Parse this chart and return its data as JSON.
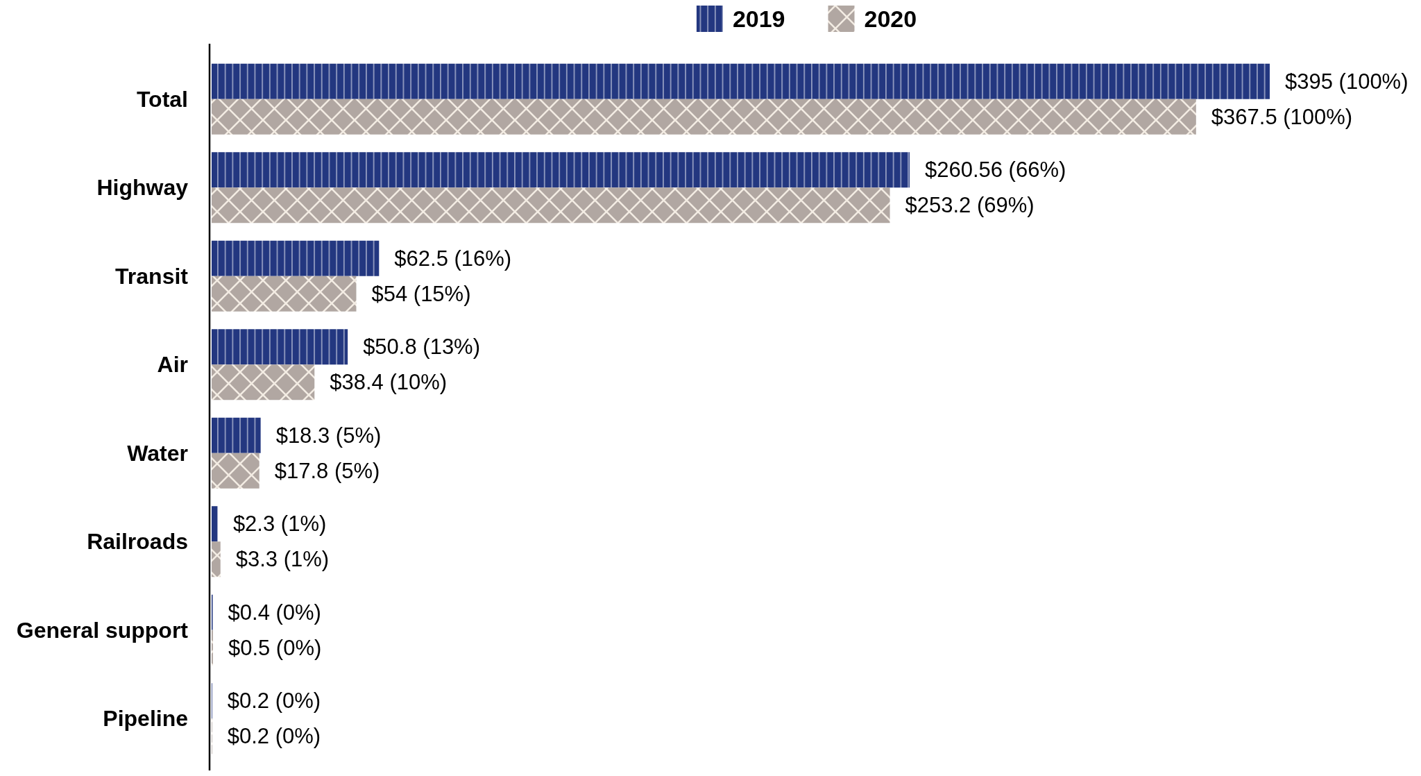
{
  "chart_data": {
    "type": "bar",
    "orientation": "horizontal",
    "legend": "top",
    "tick_labels": "y",
    "categories": [
      "Total",
      "Highway",
      "Transit",
      "Air",
      "Water",
      "Railroads",
      "General support",
      "Pipeline"
    ],
    "series": [
      {
        "name": "2019",
        "color": "#233780",
        "values": [
          395,
          260.56,
          62.5,
          50.8,
          18.3,
          2.3,
          0.4,
          0.2
        ],
        "value_labels": [
          "$395 (100%)",
          "$260.56 (66%)",
          "$62.5 (16%)",
          "$50.8 (13%)",
          "$18.3 (5%)",
          "$2.3 (1%)",
          "$0.4 (0%)",
          "$0.2 (0%)"
        ]
      },
      {
        "name": "2020",
        "color": "#b1a7a2",
        "values": [
          367.5,
          253.2,
          54,
          38.4,
          17.8,
          3.3,
          0.5,
          0.2
        ],
        "value_labels": [
          "$367.5 (100%)",
          "$253.2 (69%)",
          "$54 (15%)",
          "$38.4 (10%)",
          "$17.8 (5%)",
          "$3.3 (1%)",
          "$0.5 (0%)",
          "$0.2 (0%)"
        ]
      }
    ]
  }
}
